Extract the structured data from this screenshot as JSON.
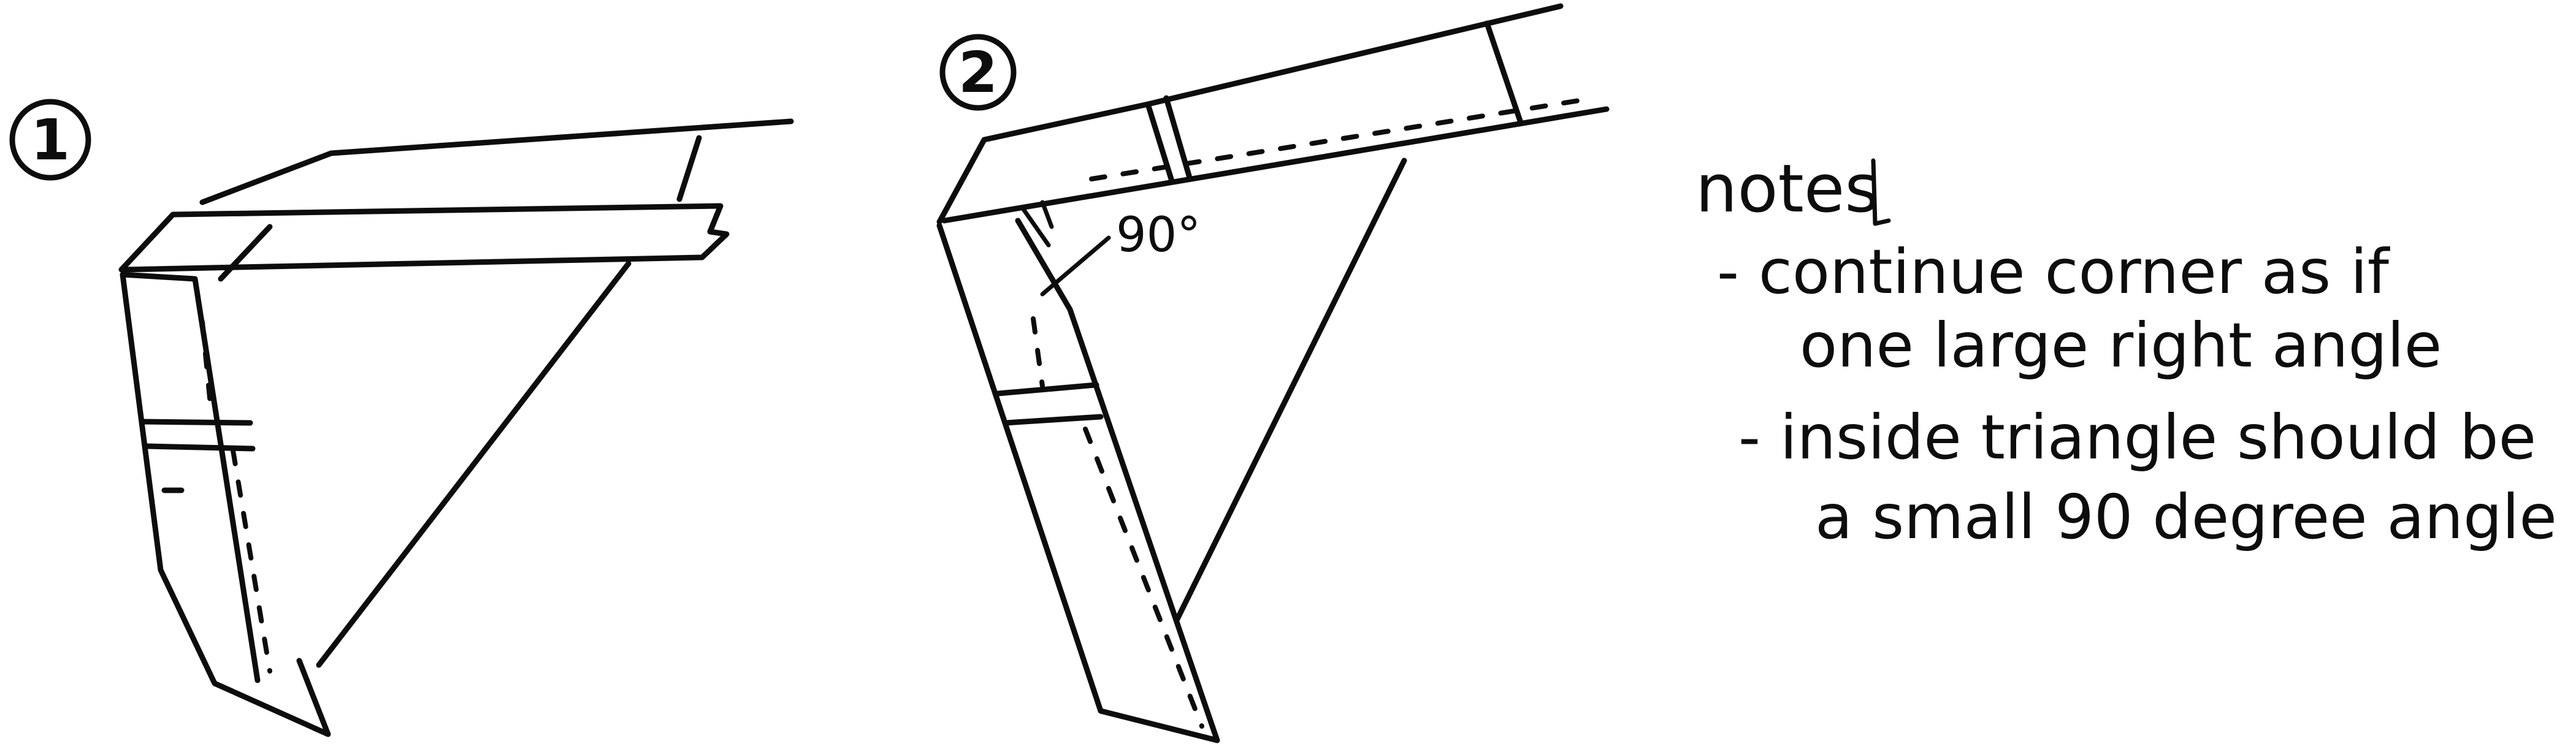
{
  "steps": [
    {
      "number": "1"
    },
    {
      "number": "2",
      "angle_label": "90°"
    }
  ],
  "notes": {
    "heading": "notes",
    "items": [
      {
        "line1": "- continue corner as if",
        "line2": "one large right angle"
      },
      {
        "line1": "- inside triangle should be",
        "line2": "a small 90 degree angle"
      }
    ]
  }
}
